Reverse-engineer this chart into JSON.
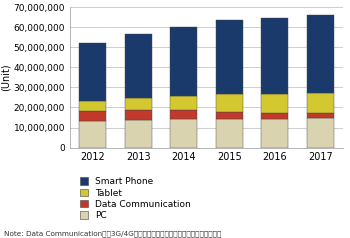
{
  "years": [
    "2012",
    "2013",
    "2014",
    "2015",
    "2016",
    "2017"
  ],
  "PC": [
    13000000,
    13500000,
    14000000,
    14000000,
    14000000,
    14500000
  ],
  "Data_Communication": [
    5000000,
    5000000,
    4500000,
    3500000,
    3000000,
    2500000
  ],
  "Tablet": [
    5000000,
    6000000,
    7000000,
    9000000,
    9500000,
    10000000
  ],
  "Smart_Phone": [
    29000000,
    32000000,
    34500000,
    37000000,
    38000000,
    39000000
  ],
  "colors": {
    "Smart_Phone": "#1a3a6b",
    "Tablet": "#d4c830",
    "Data_Communication": "#c0392b",
    "PC": "#d9d3b0"
  },
  "ylabel": "(Unit)",
  "ylim": [
    0,
    70000000
  ],
  "yticks": [
    0,
    10000000,
    20000000,
    30000000,
    40000000,
    50000000,
    60000000,
    70000000
  ],
  "legend_labels": [
    "Smart Phone",
    "Tablet",
    "Data Communication",
    "PC"
  ],
  "legend_keys": [
    "Smart_Phone",
    "Tablet",
    "Data_Communication",
    "PC"
  ],
  "note": "Note: Data Communicationは、3G/4Gパーソナルルータ、通信データカードが対象",
  "background_color": "#ffffff",
  "grid_color": "#bbbbbb",
  "bar_edge_color": "#444444",
  "bar_width": 0.6
}
